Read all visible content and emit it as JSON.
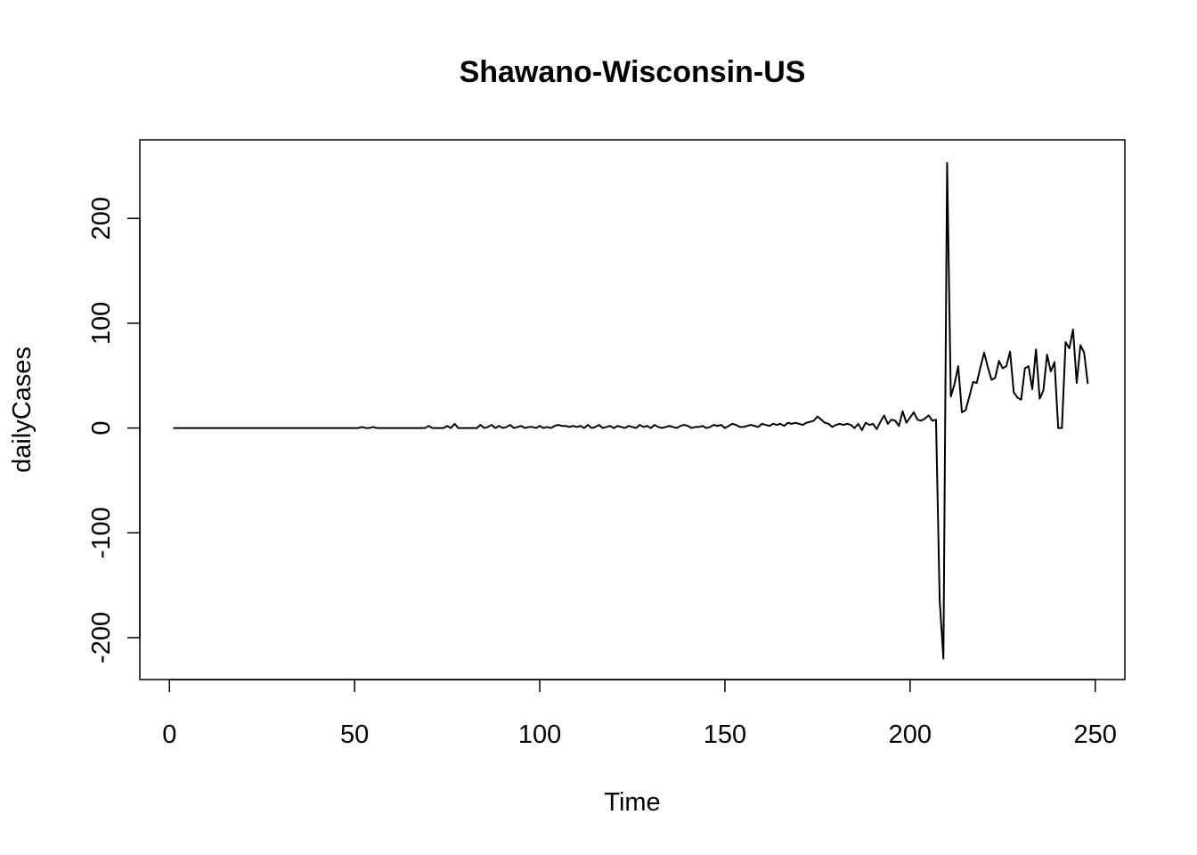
{
  "chart_data": {
    "type": "line",
    "title": "Shawano-Wisconsin-US",
    "xlabel": "Time",
    "ylabel": "dailyCases",
    "xlim": [
      -8,
      258
    ],
    "ylim": [
      -240,
      275
    ],
    "xticks": [
      0,
      50,
      100,
      150,
      200,
      250
    ],
    "yticks": [
      -200,
      -100,
      0,
      100,
      200
    ],
    "grid": false,
    "legend": "none",
    "line_color": "#000000",
    "series": [
      {
        "x": [
          1,
          2,
          3,
          4,
          5,
          6,
          7,
          8,
          9,
          10,
          11,
          12,
          13,
          14,
          15,
          16,
          17,
          18,
          19,
          20,
          21,
          22,
          23,
          24,
          25,
          26,
          27,
          28,
          29,
          30,
          31,
          32,
          33,
          34,
          35,
          36,
          37,
          38,
          39,
          40,
          41,
          42,
          43,
          44,
          45,
          46,
          47,
          48,
          49,
          50,
          51,
          52,
          53,
          54,
          55,
          56,
          57,
          58,
          59,
          60,
          61,
          62,
          63,
          64,
          65,
          66,
          67,
          68,
          69,
          70,
          71,
          72,
          73,
          74,
          75,
          76,
          77,
          78,
          79,
          80,
          81,
          82,
          83,
          84,
          85,
          86,
          87,
          88,
          89,
          90,
          91,
          92,
          93,
          94,
          95,
          96,
          97,
          98,
          99,
          100,
          101,
          102,
          103,
          104,
          105,
          106,
          107,
          108,
          109,
          110,
          111,
          112,
          113,
          114,
          115,
          116,
          117,
          118,
          119,
          120,
          121,
          122,
          123,
          124,
          125,
          126,
          127,
          128,
          129,
          130,
          131,
          132,
          133,
          134,
          135,
          136,
          137,
          138,
          139,
          140,
          141,
          142,
          143,
          144,
          145,
          146,
          147,
          148,
          149,
          150,
          151,
          152,
          153,
          154,
          155,
          156,
          157,
          158,
          159,
          160,
          161,
          162,
          163,
          164,
          165,
          166,
          167,
          168,
          169,
          170,
          171,
          172,
          173,
          174,
          175,
          176,
          177,
          178,
          179,
          180,
          181,
          182,
          183,
          184,
          185,
          186,
          187,
          188,
          189,
          190,
          191,
          192,
          193,
          194,
          195,
          196,
          197,
          198,
          199,
          200,
          201,
          202,
          203,
          204,
          205,
          206,
          207,
          208,
          209,
          210,
          211,
          212,
          213,
          214,
          215,
          216,
          217,
          218,
          219,
          220,
          221,
          222,
          223,
          224,
          225,
          226,
          227,
          228,
          229,
          230,
          231,
          232,
          233,
          234,
          235,
          236,
          237,
          238,
          239,
          240,
          241,
          242,
          243,
          244,
          245,
          246,
          247,
          248
        ],
        "values": [
          0,
          0,
          0,
          0,
          0,
          0,
          0,
          0,
          0,
          0,
          0,
          0,
          0,
          0,
          0,
          0,
          0,
          0,
          0,
          0,
          0,
          0,
          0,
          0,
          0,
          0,
          0,
          0,
          0,
          0,
          0,
          0,
          0,
          0,
          0,
          0,
          0,
          0,
          0,
          0,
          0,
          0,
          0,
          0,
          0,
          0,
          0,
          0,
          0,
          0,
          0,
          1,
          0,
          0,
          1,
          0,
          0,
          0,
          0,
          0,
          0,
          0,
          0,
          0,
          0,
          0,
          0,
          0,
          0,
          2,
          0,
          0,
          0,
          0,
          2,
          0,
          4,
          0,
          0,
          0,
          0,
          0,
          0,
          3,
          0,
          1,
          3,
          0,
          2,
          0,
          1,
          3,
          0,
          1,
          2,
          0,
          1,
          1,
          0,
          2,
          0,
          1,
          0,
          2,
          3,
          2,
          2,
          1,
          2,
          1,
          2,
          0,
          3,
          0,
          1,
          3,
          0,
          1,
          2,
          0,
          2,
          1,
          0,
          2,
          1,
          0,
          3,
          1,
          2,
          0,
          3,
          1,
          0,
          1,
          2,
          1,
          0,
          2,
          3,
          2,
          0,
          1,
          1,
          2,
          0,
          1,
          3,
          2,
          3,
          0,
          2,
          4,
          3,
          1,
          1,
          2,
          3,
          2,
          1,
          4,
          3,
          2,
          4,
          3,
          4,
          2,
          5,
          4,
          5,
          4,
          3,
          5,
          6,
          7,
          11,
          8,
          5,
          4,
          1,
          3,
          4,
          3,
          4,
          3,
          0,
          4,
          -2,
          5,
          3,
          4,
          -1,
          6,
          12,
          4,
          8,
          7,
          2,
          16,
          5,
          10,
          15,
          8,
          7,
          9,
          12,
          7,
          8,
          -165,
          -220,
          253,
          30,
          42,
          59,
          15,
          17,
          30,
          44,
          43,
          58,
          72,
          58,
          46,
          48,
          64,
          57,
          59,
          73,
          34,
          29,
          27,
          57,
          59,
          37,
          75,
          28,
          36,
          70,
          54,
          63,
          0,
          0,
          82,
          76,
          94,
          43,
          79,
          72,
          42
        ]
      }
    ]
  }
}
